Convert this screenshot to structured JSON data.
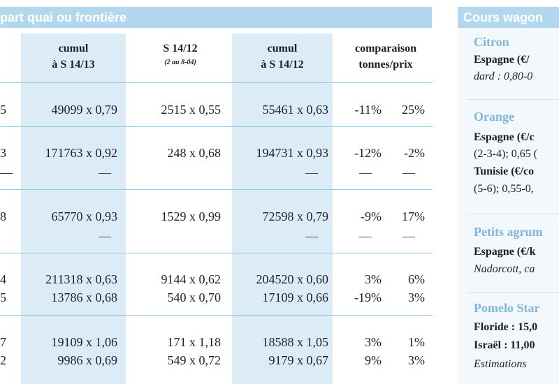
{
  "left_header": {
    "title": "part quai ou frontière"
  },
  "columns": {
    "c1": {
      "line1": "cumul",
      "line2": "à S 14/13"
    },
    "c2": {
      "line1": "S 14/12",
      "note": "(2 au 8-04)"
    },
    "c3": {
      "line1": "cumul",
      "line2": "à S 14/12"
    },
    "c4": {
      "line1": "comparaison",
      "line2": "tonnes/prix"
    }
  },
  "rows": [
    {
      "edge": "5",
      "c1": "49099 x 0,79",
      "c2": "2515 x 0,55",
      "c3": "55461 x 0,63",
      "cmp_t": "-11%",
      "cmp_p": "25%"
    },
    {
      "edge": "3",
      "c1": "171763 x 0,92",
      "c2": "248 x 0,68",
      "c3": "194731 x 0,93",
      "cmp_t": "-12%",
      "cmp_p": "-2%"
    },
    {
      "edge": "—",
      "c1": "—",
      "c2": "",
      "c3": "—",
      "cmp_t": "—",
      "cmp_p": "—"
    },
    {
      "edge": "8",
      "c1": "65770 x 0,93",
      "c2": "1529 x 0,99",
      "c3": "72598 x 0,79",
      "cmp_t": "-9%",
      "cmp_p": "17%"
    },
    {
      "edge": "",
      "c1": "—",
      "c2": "",
      "c3": "—",
      "cmp_t": "—",
      "cmp_p": "—"
    },
    {
      "edge": "4",
      "c1": "211318 x 0,63",
      "c2": "9144 x 0,62",
      "c3": "204520 x 0,60",
      "cmp_t": "3%",
      "cmp_p": "6%"
    },
    {
      "edge": "5",
      "c1": "13786 x 0,68",
      "c2": "540 x 0,70",
      "c3": "17109 x 0,66",
      "cmp_t": "-19%",
      "cmp_p": "3%"
    },
    {
      "edge": "7",
      "c1": "19109 x 1,06",
      "c2": "171 x 1,18",
      "c3": "18588 x 1,05",
      "cmp_t": "3%",
      "cmp_p": "1%"
    },
    {
      "edge": "2",
      "c1": "9986 x 0,69",
      "c2": "549 x 0,72",
      "c3": "9179 x 0,67",
      "cmp_t": "9%",
      "cmp_p": "3%"
    }
  ],
  "right_panel": {
    "title": "Cours wagon",
    "sections": [
      {
        "title": "Citron",
        "lines": [
          "Espagne  (€/",
          "dard : 0,80-0"
        ]
      },
      {
        "title": "Orange",
        "lines": [
          "Espagne (€/c",
          "(2-3-4); 0,65 (",
          "Tunisie (€/co",
          "(5-6); 0,55-0,"
        ]
      },
      {
        "title": "Petits agrum",
        "lines": [
          "Espagne (€/k",
          "Nadorcott, ca"
        ]
      },
      {
        "title": "Pomelo Star",
        "lines": [
          "Floride : 15,0",
          "Israël : 11,00",
          "Estimations"
        ]
      }
    ]
  },
  "colors": {
    "band": "#b3d7ee",
    "shade": "#dcecf7",
    "section_title": "#7fb6d9",
    "rule": "#8ec6e4"
  }
}
